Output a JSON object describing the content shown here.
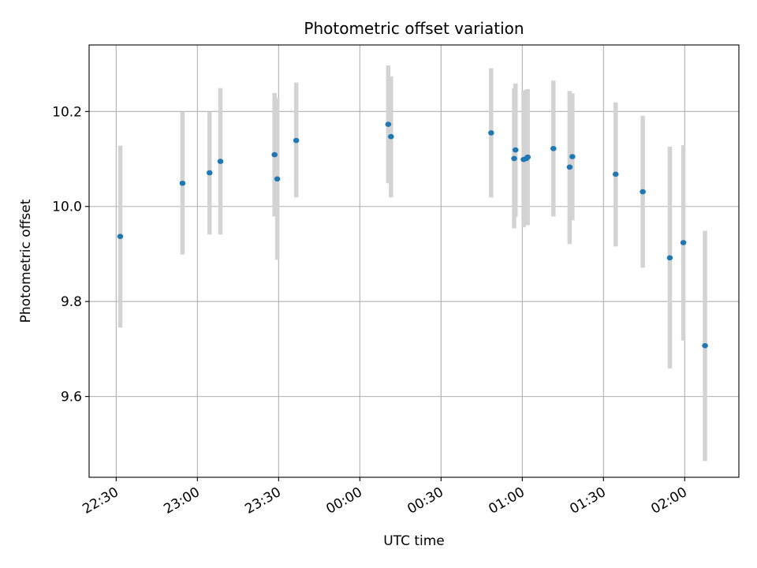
{
  "chart_data": {
    "type": "scatter",
    "title": "Photometric offset variation",
    "xlabel": "UTC time",
    "ylabel": "Photometric offset",
    "x_axis_type": "time",
    "x_tick_labels": [
      "22:30",
      "23:00",
      "23:30",
      "00:00",
      "00:30",
      "01:00",
      "01:30",
      "02:00"
    ],
    "xlim": [
      "22:20",
      "02:20"
    ],
    "ylim": [
      9.43,
      10.34
    ],
    "y_ticks": [
      9.6,
      9.8,
      10.0,
      10.2
    ],
    "y_tick_labels": [
      "9.6",
      "9.8",
      "10.0",
      "10.2"
    ],
    "grid": true,
    "colors": {
      "marker": "#1f77b4",
      "errorbar": "#d3d3d3",
      "grid": "#b0b0b0"
    },
    "points": [
      {
        "t": "22:31:30",
        "y": 9.937,
        "lo": 9.745,
        "hi": 10.128
      },
      {
        "t": "22:54:30",
        "y": 10.049,
        "lo": 9.899,
        "hi": 10.199
      },
      {
        "t": "23:04:30",
        "y": 10.071,
        "lo": 9.941,
        "hi": 10.199
      },
      {
        "t": "23:08:30",
        "y": 10.095,
        "lo": 9.941,
        "hi": 10.249
      },
      {
        "t": "23:28:30",
        "y": 10.109,
        "lo": 9.979,
        "hi": 10.239
      },
      {
        "t": "23:29:30",
        "y": 10.058,
        "lo": 9.888,
        "hi": 10.228
      },
      {
        "t": "23:36:30",
        "y": 10.139,
        "lo": 10.019,
        "hi": 10.261
      },
      {
        "t": "00:10:30",
        "y": 10.173,
        "lo": 10.049,
        "hi": 10.297
      },
      {
        "t": "00:11:30",
        "y": 10.147,
        "lo": 10.019,
        "hi": 10.274
      },
      {
        "t": "00:48:30",
        "y": 10.155,
        "lo": 10.019,
        "hi": 10.291
      },
      {
        "t": "00:57:00",
        "y": 10.101,
        "lo": 9.954,
        "hi": 10.249
      },
      {
        "t": "00:57:30",
        "y": 10.119,
        "lo": 9.978,
        "hi": 10.259
      },
      {
        "t": "01:00:30",
        "y": 10.099,
        "lo": 9.956,
        "hi": 10.244
      },
      {
        "t": "01:01:30",
        "y": 10.101,
        "lo": 9.961,
        "hi": 10.246
      },
      {
        "t": "01:02:00",
        "y": 10.104,
        "lo": 9.961,
        "hi": 10.247
      },
      {
        "t": "01:11:30",
        "y": 10.122,
        "lo": 9.979,
        "hi": 10.265
      },
      {
        "t": "01:17:30",
        "y": 10.083,
        "lo": 9.921,
        "hi": 10.243
      },
      {
        "t": "01:18:30",
        "y": 10.105,
        "lo": 9.971,
        "hi": 10.238
      },
      {
        "t": "01:34:30",
        "y": 10.068,
        "lo": 9.916,
        "hi": 10.219
      },
      {
        "t": "01:44:30",
        "y": 10.031,
        "lo": 9.871,
        "hi": 10.191
      },
      {
        "t": "01:54:30",
        "y": 9.892,
        "lo": 9.659,
        "hi": 10.126
      },
      {
        "t": "01:59:30",
        "y": 9.924,
        "lo": 9.718,
        "hi": 10.129
      },
      {
        "t": "02:07:30",
        "y": 9.707,
        "lo": 9.464,
        "hi": 9.949
      }
    ]
  }
}
